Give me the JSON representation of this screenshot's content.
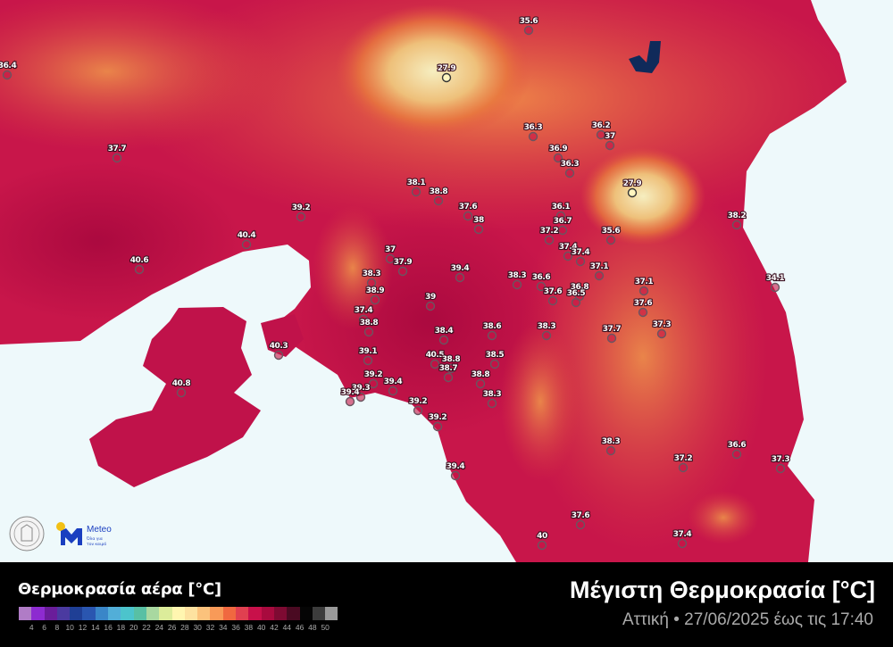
{
  "map": {
    "colors": {
      "base": "#c8164a",
      "warm": "#e8603c",
      "mountain": "#f4e7a8",
      "sea": "#eef9fb",
      "lake": "#102a5a",
      "low_marker": "#fff6c0"
    },
    "stations": [
      "35.6",
      "36.4",
      "27.9",
      "37.7",
      "36.3",
      "36.2",
      "37",
      "36.9",
      "36.3",
      "27.9",
      "38.1",
      "38.8",
      "37.6",
      "38",
      "39.2",
      "38.2",
      "40.4",
      "36.1",
      "36.7",
      "37.2",
      "35.6",
      "37",
      "37.9",
      "40.6",
      "39.4",
      "37.4",
      "37.4",
      "38.3",
      "37.1",
      "34.1",
      "38.3",
      "38.9",
      "39",
      "36.6",
      "37.1",
      "36.8",
      "37.6",
      "36.5",
      "37.6",
      "37.4",
      "38.8",
      "38.4",
      "38.6",
      "38.3",
      "37.7",
      "37.3",
      "40.3",
      "39.1",
      "40.5",
      "38.8",
      "38.7",
      "38.5",
      "38.8",
      "40.8",
      "39.2",
      "39.4",
      "39.3",
      "39.4",
      "38.3",
      "39.2",
      "39.2",
      "38.3",
      "37.2",
      "36.6",
      "37.3",
      "39.4",
      "37.6",
      "40",
      "37.4"
    ]
  },
  "logos": {
    "meteo_name": "Meteo",
    "meteo_tagline_1": "Όλα για",
    "meteo_tagline_2": "τον καιρό"
  },
  "legend": {
    "title": "Θερμοκρασία αέρα [°C]",
    "ticks": [
      "4",
      "6",
      "8",
      "10",
      "12",
      "14",
      "16",
      "18",
      "20",
      "22",
      "24",
      "26",
      "28",
      "30",
      "32",
      "34",
      "36",
      "38",
      "40",
      "42",
      "44",
      "46",
      "48",
      "50"
    ],
    "colors": [
      "#b07cc6",
      "#8d2bd0",
      "#6a1d9a",
      "#4b3aa0",
      "#1f3f95",
      "#2a56b0",
      "#3a86c8",
      "#52aed8",
      "#4cc4cc",
      "#58c0a4",
      "#a8d8a0",
      "#dcec9a",
      "#fff6b0",
      "#fde2a0",
      "#fbc27c",
      "#f89a58",
      "#f06840",
      "#e04050",
      "#c8104a",
      "#a80a3e",
      "#7e0a32",
      "#4a0a22",
      "#050505",
      "#3c3c3c",
      "#999999"
    ]
  },
  "header": {
    "title": "Μέγιστη Θερμοκρασία [°C]",
    "subtitle": "Αττική • 27/06/2025 έως τις 17:40"
  }
}
